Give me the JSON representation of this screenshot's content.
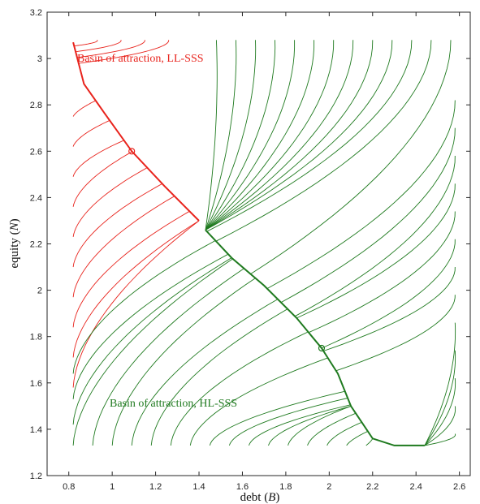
{
  "chart_data": {
    "type": "line",
    "title": "",
    "xlabel": "debt (B)",
    "ylabel": "equity (N)",
    "xlim": [
      0.7,
      2.65
    ],
    "ylim": [
      1.2,
      3.2
    ],
    "xticks": [
      "0.8",
      "1",
      "1.2",
      "1.4",
      "1.6",
      "1.8",
      "2",
      "2.2",
      "2.4",
      "2.6"
    ],
    "yticks": [
      "1.2",
      "1.4",
      "1.6",
      "1.8",
      "2",
      "2.2",
      "2.4",
      "2.6",
      "2.8",
      "3",
      "3.2"
    ],
    "grid": false,
    "annotations": [
      {
        "text": "Basin of attraction, LL-SSS",
        "color": "#e8231c",
        "x": 0.86,
        "y": 3.02
      },
      {
        "text": "Basin of attraction, HL-SSS",
        "color": "#1f7a1f",
        "x": 1.0,
        "y": 1.51
      }
    ],
    "equilibria": [
      {
        "name": "LL-SSS",
        "x": 1.09,
        "y": 2.6,
        "color": "#e8231c"
      },
      {
        "name": "HL-SSS",
        "x": 1.965,
        "y": 1.75,
        "color": "#1f7a1f"
      }
    ],
    "separatrix": [
      [
        1.4,
        2.3
      ],
      [
        1.44,
        2.27
      ]
    ],
    "series": [
      {
        "basin": "LL-SSS",
        "color": "#e8231c",
        "manifold": [
          [
            0.82,
            3.07
          ],
          [
            0.87,
            2.89
          ],
          [
            0.96,
            2.77
          ],
          [
            1.09,
            2.6
          ],
          [
            1.24,
            2.45
          ],
          [
            1.4,
            2.3
          ]
        ]
      },
      {
        "basin": "HL-SSS",
        "color": "#1f7a1f",
        "manifold": [
          [
            1.43,
            2.26
          ],
          [
            1.55,
            2.14
          ],
          [
            1.7,
            2.02
          ],
          [
            1.85,
            1.88
          ],
          [
            1.965,
            1.75
          ],
          [
            2.04,
            1.64
          ],
          [
            2.1,
            1.5
          ],
          [
            2.2,
            1.36
          ],
          [
            2.3,
            1.33
          ],
          [
            2.44,
            1.33
          ]
        ]
      }
    ]
  }
}
